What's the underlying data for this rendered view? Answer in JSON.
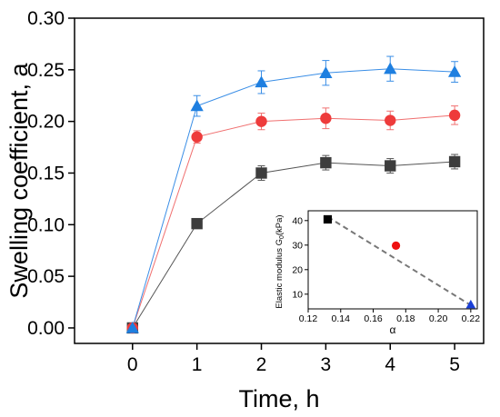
{
  "chart_data": [
    {
      "type": "line",
      "xlabel": "Time, h",
      "ylabel": "Swelling coefficient, a",
      "xlim": [
        -0.9,
        5.45
      ],
      "ylim": [
        -0.015,
        0.3
      ],
      "xticks": [
        0,
        1,
        2,
        3,
        4,
        5
      ],
      "xtick_labels": [
        "0",
        "1",
        "2",
        "3",
        "4",
        "5"
      ],
      "yticks": [
        0.0,
        0.05,
        0.1,
        0.15,
        0.2,
        0.25,
        0.3
      ],
      "ytick_labels": [
        "0.00",
        "0.05",
        "0.10",
        "0.15",
        "0.20",
        "0.25",
        "0.30"
      ],
      "grid": false,
      "x": [
        0,
        1,
        2,
        3,
        4,
        5
      ],
      "series": [
        {
          "marker": "square",
          "color": "#3d3d3d",
          "line_color": "#555555",
          "values": [
            0.0,
            0.101,
            0.15,
            0.16,
            0.157,
            0.161
          ],
          "errors": [
            0.003,
            0.004,
            0.007,
            0.007,
            0.007,
            0.007
          ]
        },
        {
          "marker": "circle",
          "color": "#ee3b3b",
          "line_color": "#f07070",
          "values": [
            0.0,
            0.185,
            0.2,
            0.203,
            0.201,
            0.206
          ],
          "errors": [
            0.003,
            0.006,
            0.008,
            0.01,
            0.009,
            0.009
          ]
        },
        {
          "marker": "triangle",
          "color": "#1e7fe0",
          "line_color": "#3a8ee6",
          "values": [
            0.0,
            0.215,
            0.238,
            0.247,
            0.251,
            0.248
          ],
          "errors": [
            0.003,
            0.01,
            0.011,
            0.012,
            0.012,
            0.01
          ]
        }
      ]
    },
    {
      "type": "scatter",
      "xlabel": "α",
      "ylabel": "Elastic modulus G",
      "ylabel_subscript": "0",
      "ylabel_unit": "(kPa)",
      "xlim": [
        0.12,
        0.224
      ],
      "ylim": [
        4,
        44
      ],
      "xticks": [
        0.12,
        0.14,
        0.16,
        0.18,
        0.2,
        0.22
      ],
      "xtick_labels": [
        "0.12",
        "0.14",
        "0.16",
        "0.18",
        "0.20",
        "0.22"
      ],
      "yticks": [
        10,
        20,
        30,
        40
      ],
      "ytick_labels": [
        "10",
        "20",
        "30",
        "40"
      ],
      "points": [
        {
          "x": 0.132,
          "y": 40.5,
          "marker": "square",
          "color": "#000000"
        },
        {
          "x": 0.174,
          "y": 29.8,
          "marker": "circle",
          "color": "#ee1111"
        },
        {
          "x": 0.22,
          "y": 5.8,
          "marker": "triangle",
          "color": "#1a3fd6"
        }
      ],
      "trend_line": {
        "x": [
          0.132,
          0.22
        ],
        "y": [
          41.5,
          5.5
        ],
        "style": "dashed",
        "color": "#777777"
      }
    }
  ]
}
